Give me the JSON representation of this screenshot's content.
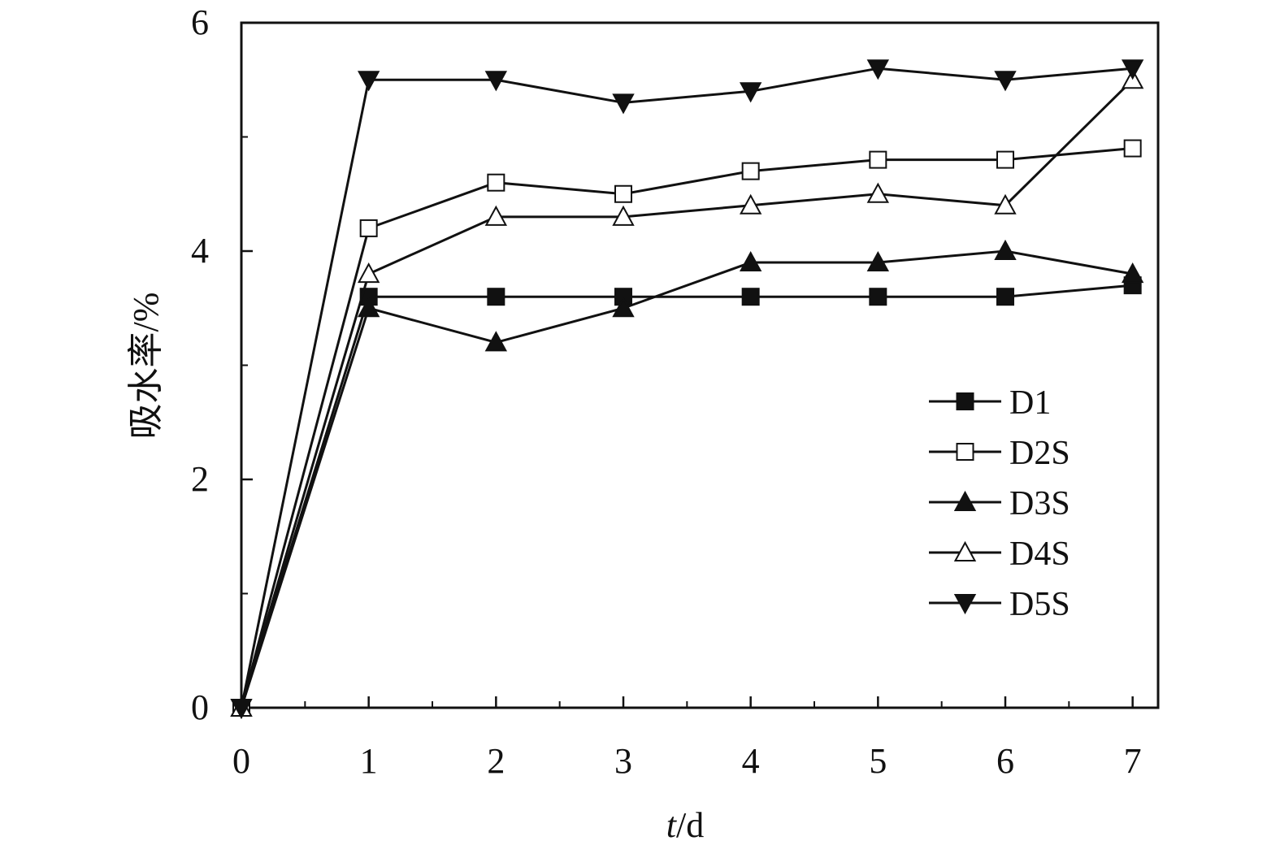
{
  "chart_data": {
    "type": "line",
    "title": "",
    "xlabel": "t/d",
    "xlabel_italic_part": "t",
    "xlabel_rest": "/d",
    "ylabel": "吸水率/%",
    "xlim": [
      0,
      7.2
    ],
    "ylim": [
      0,
      6
    ],
    "x_ticks": [
      0,
      1,
      2,
      3,
      4,
      5,
      6,
      7
    ],
    "y_ticks": [
      0,
      2,
      4,
      6
    ],
    "y_minor_ticks": [
      1,
      3,
      5
    ],
    "x_minor_ticks": [
      0.5,
      1.5,
      2.5,
      3.5,
      4.5,
      5.5,
      6.5
    ],
    "grid": false,
    "legend_position": "right",
    "x": [
      0,
      1,
      2,
      3,
      4,
      5,
      6,
      7
    ],
    "series": [
      {
        "name": "D1",
        "marker": "square",
        "filled": true,
        "values": [
          0,
          3.6,
          3.6,
          3.6,
          3.6,
          3.6,
          3.6,
          3.7
        ]
      },
      {
        "name": "D2S",
        "marker": "square",
        "filled": false,
        "values": [
          0,
          4.2,
          4.6,
          4.5,
          4.7,
          4.8,
          4.8,
          4.9
        ]
      },
      {
        "name": "D3S",
        "marker": "triangle-up",
        "filled": true,
        "values": [
          0,
          3.5,
          3.2,
          3.5,
          3.9,
          3.9,
          4.0,
          3.8
        ]
      },
      {
        "name": "D4S",
        "marker": "triangle-up",
        "filled": false,
        "values": [
          0,
          3.8,
          4.3,
          4.3,
          4.4,
          4.5,
          4.4,
          5.5
        ]
      },
      {
        "name": "D5S",
        "marker": "triangle-down",
        "filled": true,
        "values": [
          0,
          5.5,
          5.5,
          5.3,
          5.4,
          5.6,
          5.5,
          5.6
        ]
      }
    ]
  }
}
